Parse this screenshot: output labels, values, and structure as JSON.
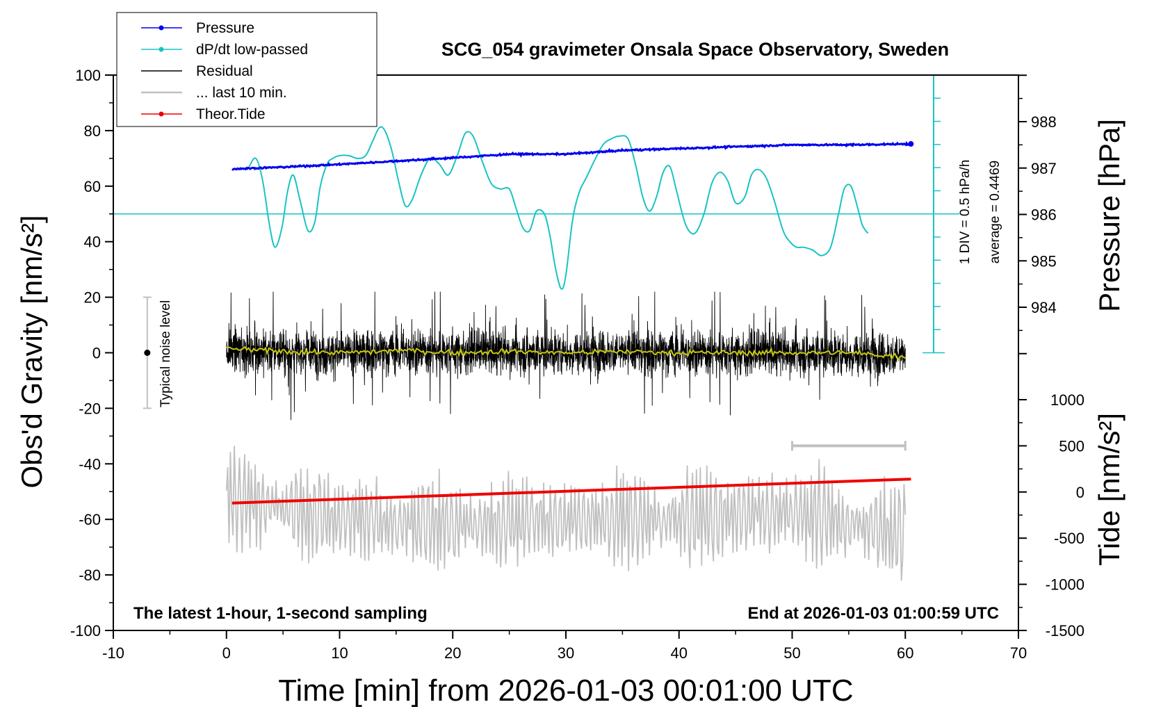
{
  "chart_data": {
    "type": "line",
    "title": "SCG_054 gravimeter Onsala Space Observatory, Sweden",
    "xlabel": "Time [min] from 2026-01-03 00:01:00 UTC",
    "ylabel_left": "Obs'd Gravity [nm/s²]",
    "ylabel_right_pressure": "Pressure [hPa]",
    "ylabel_right_tide": "Tide [nm/s²]",
    "xlim": [
      -10,
      70
    ],
    "ylim": [
      -100,
      100
    ],
    "pressure_ylim": [
      983,
      989
    ],
    "tide_ylim": [
      -1500,
      1500
    ],
    "x_ticks": [
      "-10",
      "0",
      "10",
      "20",
      "30",
      "40",
      "50",
      "60",
      "70"
    ],
    "y_ticks": [
      "-100",
      "-80",
      "-60",
      "-40",
      "-20",
      "0",
      "20",
      "40",
      "60",
      "80",
      "100"
    ],
    "pressure_ticks": [
      "984",
      "985",
      "986",
      "987",
      "988"
    ],
    "tide_ticks": [
      "-1500",
      "-1000",
      "-500",
      "0",
      "500",
      "1000"
    ],
    "legend": [
      {
        "label": "Pressure",
        "color": "#0000ee",
        "marker": true
      },
      {
        "label": "dP/dt low-passed",
        "color": "#19c3c3",
        "marker": true
      },
      {
        "label": "Residual",
        "color": "#000000",
        "marker": false
      },
      {
        "label": "... last 10 min.",
        "color": "#c0c0c0",
        "marker": false
      },
      {
        "label": "Theor.Tide",
        "color": "#ee0000",
        "marker": true
      }
    ],
    "legend_position": "top-left",
    "annotations": {
      "bottom_left": "The latest 1-hour, 1-second sampling",
      "bottom_right": "End at 2026-01-03 01:00:59 UTC",
      "noise_label": "Typical noise level",
      "dpdt_scale": "1 DIV = 0.5 hPa/h",
      "dpdt_average": "average = 0.4469"
    },
    "noise_level": {
      "x": -7,
      "center": 0,
      "low": -20,
      "high": 20
    },
    "last10_bar": {
      "x_start": 50,
      "x_end": 60,
      "tide_value": 500
    },
    "dpdt_baseline": 50,
    "series": [
      {
        "name": "Pressure",
        "axis": "pressure",
        "color": "#0000ee",
        "x": [
          0.5,
          5,
          10,
          15,
          20,
          25,
          30,
          35,
          40,
          45,
          50,
          55,
          60.5
        ],
        "values": [
          986.98,
          987.02,
          987.08,
          987.15,
          987.22,
          987.3,
          987.3,
          987.38,
          987.42,
          987.46,
          987.5,
          987.5,
          987.52
        ]
      },
      {
        "name": "dP/dt low-passed",
        "axis": "gravity",
        "color": "#19c3c3",
        "x": [
          2,
          2.6,
          3.2,
          3.8,
          4.3,
          4.9,
          5.4,
          5.9,
          6.5,
          7.2,
          7.8,
          8.3,
          8.9,
          9.4,
          10,
          10.8,
          11.6,
          12.3,
          12.9,
          13.5,
          14,
          14.6,
          15.2,
          15.8,
          16.4,
          17.2,
          18,
          18.8,
          19.6,
          20.4,
          21.1,
          21.8,
          22.6,
          23.4,
          24.2,
          25,
          25.6,
          26.2,
          26.8,
          27.4,
          28.1,
          28.6,
          29.1,
          29.6,
          30,
          30.6,
          31.2,
          31.8,
          32.5,
          33.3,
          34,
          34.7,
          35.5,
          36.2,
          36.8,
          37.4,
          38,
          38.6,
          39.2,
          39.8,
          40.6,
          41.4,
          42.2,
          42.9,
          43.6,
          44.3,
          45,
          45.8,
          46.4,
          47,
          47.7,
          48.4,
          49.2,
          49.8,
          50.4,
          51,
          51.8,
          52.6,
          53.4,
          54.1,
          54.6,
          55.2,
          55.8,
          56.2,
          56.7
        ],
        "values": [
          67,
          70,
          62,
          46,
          38,
          45,
          58,
          64,
          55,
          44,
          47,
          60,
          68,
          70,
          71,
          71,
          70,
          71,
          76,
          81,
          80,
          73,
          62,
          53,
          55,
          64,
          70,
          68,
          64,
          71,
          79,
          78,
          69,
          61,
          59,
          59,
          52,
          45,
          44,
          51,
          50,
          42,
          30,
          23,
          28,
          48,
          58,
          63,
          69,
          75,
          77,
          78,
          77,
          67,
          56,
          51,
          56,
          65,
          67,
          58,
          46,
          43,
          50,
          61,
          65,
          62,
          54,
          56,
          64,
          66,
          63,
          55,
          44,
          40,
          38,
          38,
          37,
          35,
          38,
          50,
          59,
          60,
          52,
          46,
          43
        ]
      },
      {
        "name": "Residual",
        "axis": "gravity",
        "color": "#000000",
        "x_range": [
          0,
          60
        ],
        "summary": "noisy signal around 0, amplitude about ±15, extremes near ±24",
        "x": [
          0,
          10,
          20,
          30,
          40,
          50,
          60
        ],
        "values": [
          1,
          0,
          0.5,
          0,
          0,
          0,
          -1
        ]
      },
      {
        "name": "Residual (smoothed)",
        "axis": "gravity",
        "color": "#c8c810",
        "x": [
          0,
          5,
          10,
          14,
          15,
          20,
          25,
          30,
          35,
          40,
          45,
          50,
          55,
          60
        ],
        "values": [
          1.5,
          0.5,
          0,
          0.5,
          1,
          0,
          0.5,
          0,
          0.5,
          0,
          0,
          0,
          0,
          -1.5
        ]
      },
      {
        "name": "... last 10 min.",
        "axis": "gravity",
        "color": "#c0c0c0",
        "x_range": [
          0,
          60
        ],
        "summary": "oscillating trace centered near -60, range about -83 to -42",
        "x": [
          0,
          10,
          20,
          30,
          40,
          50,
          60
        ],
        "values": [
          -52,
          -60,
          -62,
          -60,
          -60,
          -58,
          -65
        ]
      },
      {
        "name": "Theor.Tide",
        "axis": "tide",
        "color": "#ee0000",
        "x": [
          0.5,
          60.5
        ],
        "values": [
          -120,
          140
        ]
      }
    ]
  }
}
